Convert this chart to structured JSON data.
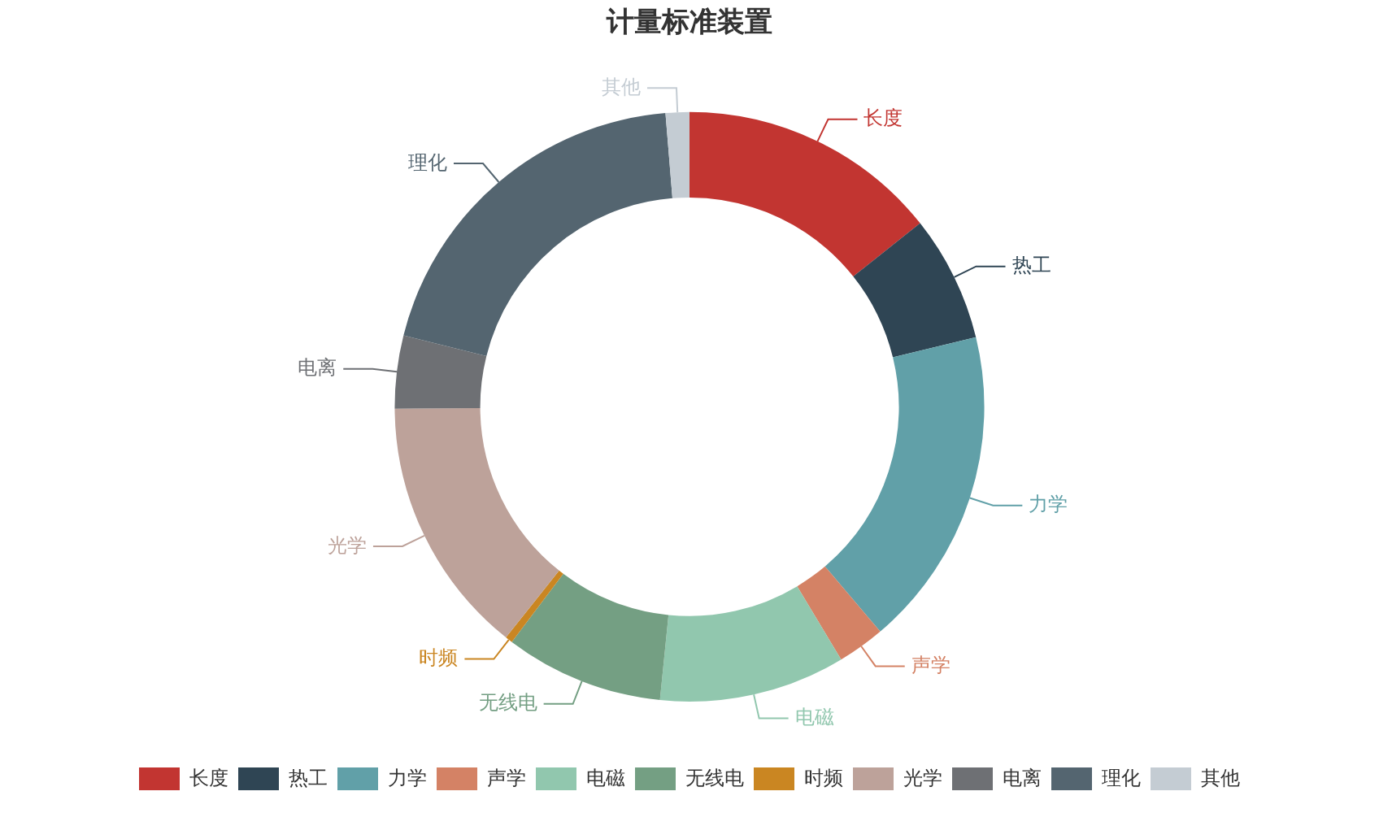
{
  "chart_data": {
    "type": "donut",
    "title": "计量标准装置",
    "categories": [
      "长度",
      "热工",
      "力学",
      "声学",
      "电磁",
      "无线电",
      "时频",
      "光学",
      "电离",
      "理化",
      "其他"
    ],
    "values": [
      14.3,
      6.9,
      17.6,
      2.6,
      10.2,
      8.7,
      0.4,
      14.2,
      4.0,
      19.8,
      1.3
    ],
    "colors": [
      "#c23531",
      "#2f4554",
      "#61a0a8",
      "#d48265",
      "#91c7ae",
      "#749f83",
      "#ca8622",
      "#bda29a",
      "#6e7074",
      "#546570",
      "#c4ccd3"
    ],
    "legend": "bottom"
  }
}
